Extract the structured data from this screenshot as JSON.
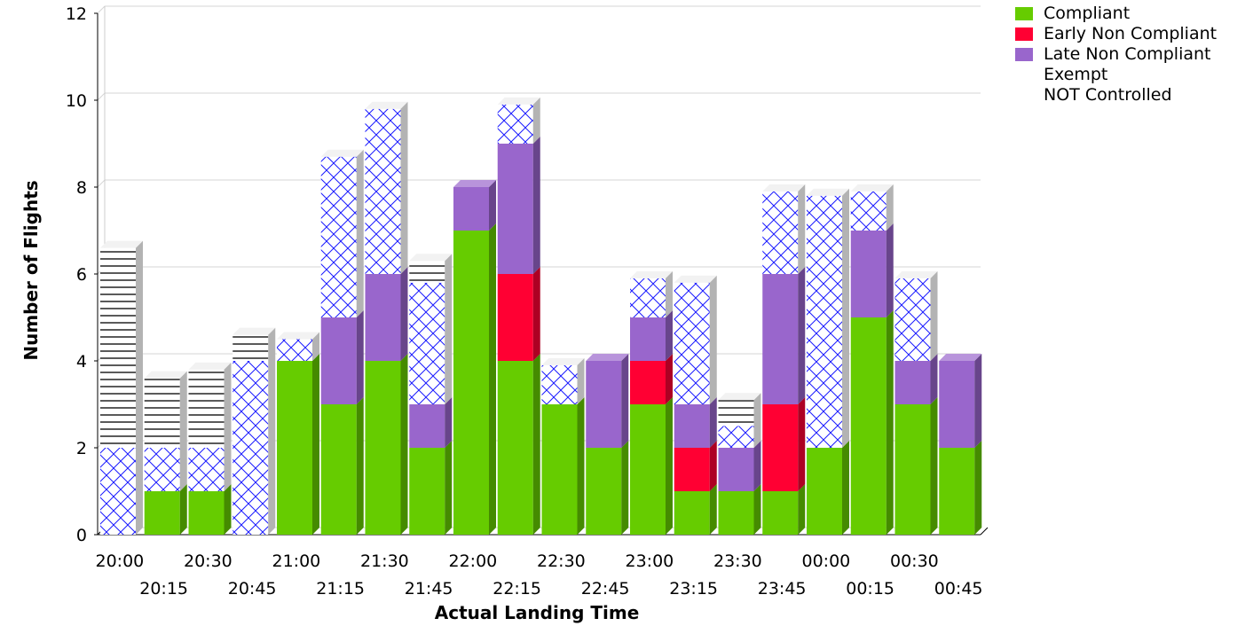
{
  "chart_data": {
    "type": "bar",
    "stacked": true,
    "xlabel": "Actual Landing Time",
    "ylabel": "Number of Flights",
    "ylim": [
      0,
      12
    ],
    "yticks": [
      0,
      2,
      4,
      6,
      8,
      10,
      12
    ],
    "grid": true,
    "legend_position": "top-right",
    "categories": [
      "20:00",
      "20:15",
      "20:30",
      "20:45",
      "21:00",
      "21:15",
      "21:30",
      "21:45",
      "22:00",
      "22:15",
      "22:30",
      "22:45",
      "23:00",
      "23:15",
      "23:30",
      "23:45",
      "00:00",
      "00:15",
      "00:30",
      "00:45"
    ],
    "series": [
      {
        "name": "Compliant",
        "color": "#66cc00",
        "values": [
          0,
          1,
          1,
          0,
          4,
          3,
          4,
          2,
          7,
          4,
          3,
          2,
          3,
          1,
          1,
          1,
          2,
          5,
          3,
          2
        ]
      },
      {
        "name": "Early Non Compliant",
        "color": "#ff0033",
        "values": [
          0,
          0,
          0,
          0,
          0,
          0,
          0,
          0,
          0,
          2,
          0,
          0,
          1,
          1,
          0,
          2,
          0,
          0,
          0,
          0
        ]
      },
      {
        "name": "Late Non Compliant",
        "color": "#9966cc",
        "values": [
          0,
          0,
          0,
          0,
          0,
          2,
          2,
          1,
          1,
          3,
          0,
          2,
          1,
          1,
          1,
          3,
          0,
          2,
          1,
          2
        ]
      },
      {
        "name": "Exempt",
        "pattern": "crosshatch",
        "color": "#0000ff",
        "values": [
          2,
          1,
          1,
          4,
          0.5,
          3.7,
          3.8,
          2.8,
          0,
          0.9,
          0.9,
          0,
          0.9,
          2.8,
          0.5,
          1.9,
          5.8,
          0.9,
          1.9,
          0
        ]
      },
      {
        "name": "NOT Controlled",
        "pattern": "horizontal-lines",
        "color": "#000000",
        "values": [
          4.6,
          1.6,
          1.8,
          0.6,
          0,
          0,
          0,
          0.5,
          0,
          0,
          0,
          0,
          0,
          0,
          0.6,
          0,
          0,
          0,
          0,
          0
        ]
      }
    ]
  }
}
